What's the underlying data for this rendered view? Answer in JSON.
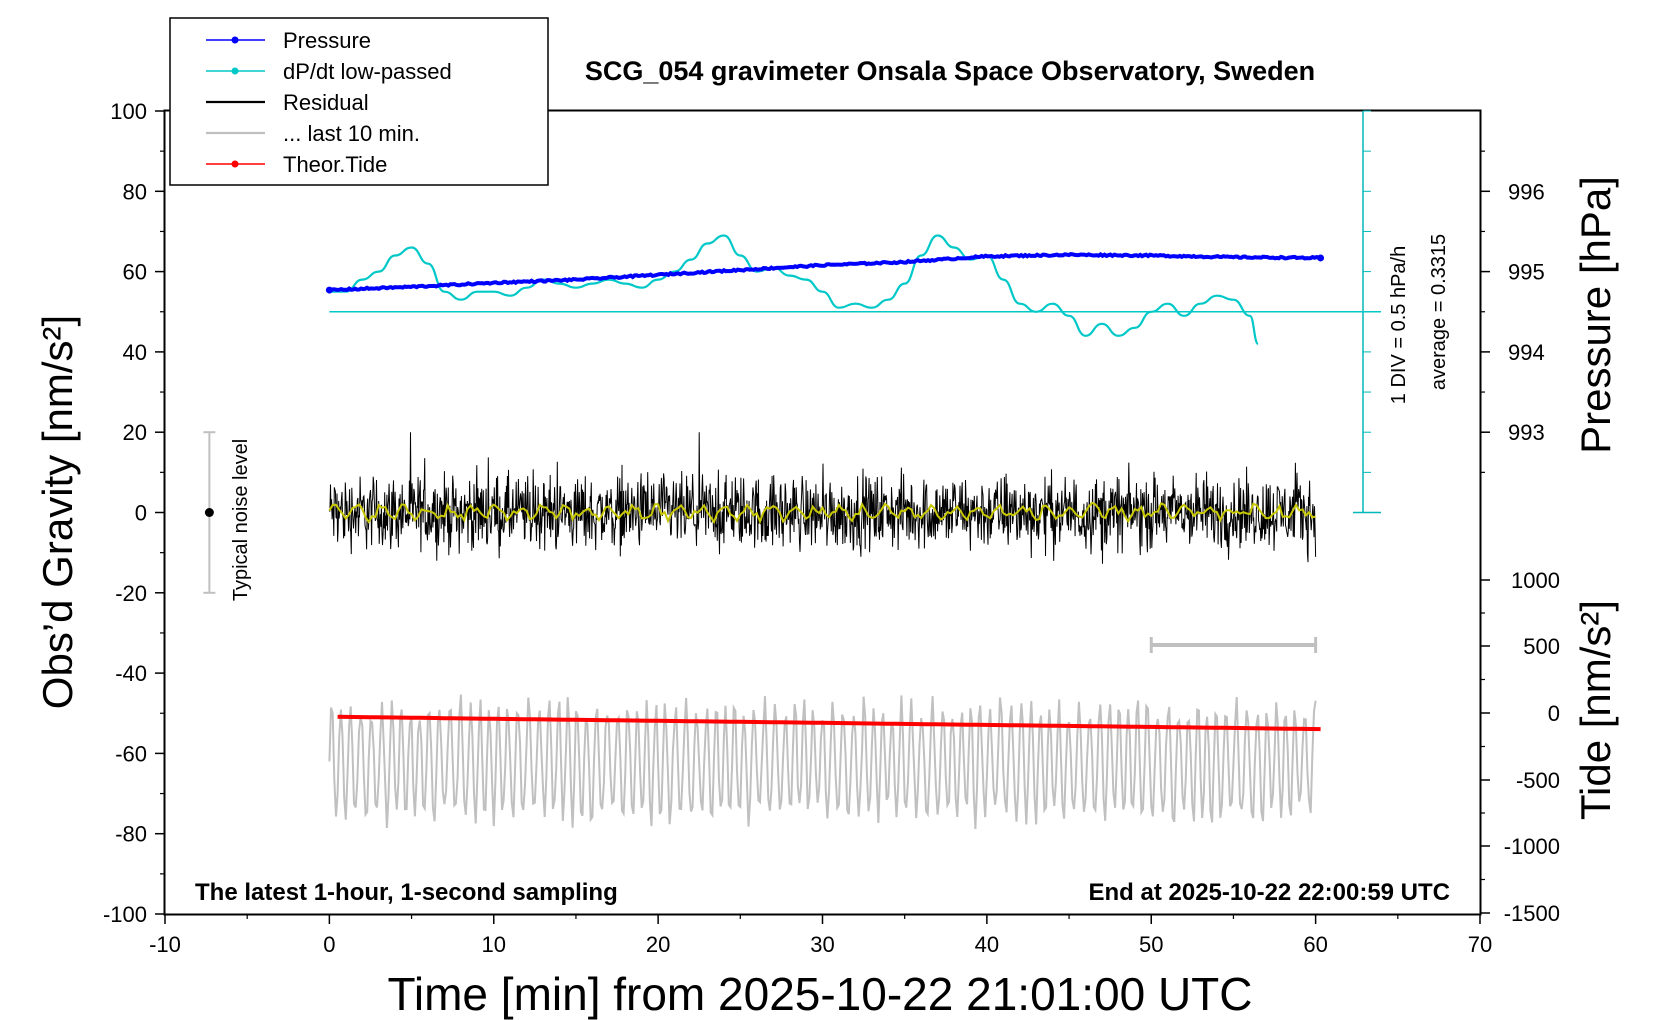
{
  "chart_data": {
    "type": "line",
    "title": "SCG_054 gravimeter Onsala Space Observatory, Sweden",
    "xlabel": "Time [min] from 2025-10-22 21:01:00 UTC",
    "ylabel_left": "Obs’d Gravity [nm/s²]",
    "ylabel_right_top": "Pressure [hPa]",
    "ylabel_right_bottom": "Tide [nm/s²]",
    "xlim": [
      -10,
      70
    ],
    "ylim": [
      -100,
      100
    ],
    "pressure_ylim": [
      992,
      997
    ],
    "tide_ylim": [
      -1500,
      1000
    ],
    "x_ticks": [
      "-10",
      "0",
      "10",
      "20",
      "30",
      "40",
      "50",
      "60",
      "70"
    ],
    "y_ticks": [
      "100",
      "80",
      "60",
      "40",
      "20",
      "0",
      "-20",
      "-40",
      "-60",
      "-80",
      "-100"
    ],
    "pressure_ticks": [
      "996",
      "995",
      "994",
      "993"
    ],
    "tide_ticks": [
      "1000",
      "500",
      "0",
      "-500",
      "-1000",
      "-1500"
    ],
    "legend": {
      "placement": "top-left",
      "entries": [
        {
          "label": "Pressure",
          "color": "#0000ff",
          "marker": true
        },
        {
          "label": "dP/dt low-passed",
          "color": "#00c8c8",
          "marker": true
        },
        {
          "label": "Residual",
          "color": "#000000",
          "marker": false
        },
        {
          "label": "... last 10 min.",
          "color": "#c0c0c0",
          "marker": false
        },
        {
          "label": "Theor.Tide",
          "color": "#ff0000",
          "marker": true
        }
      ]
    },
    "annotations": {
      "noise_label": "Typical noise level",
      "noise_range": [
        -20,
        20
      ],
      "dpdt_div": "1 DIV = 0.5 hPa/h",
      "dpdt_avg": "average = 0.3315",
      "bottom_left": "The latest 1-hour, 1-second sampling",
      "bottom_right": "End at 2025-10-22 22:00:59 UTC",
      "last10_range": [
        50,
        60
      ]
    },
    "series": [
      {
        "name": "Pressure",
        "color": "#0000ff",
        "units": "hPa",
        "x": [
          0,
          5,
          10,
          15,
          20,
          25,
          30,
          35,
          40,
          45,
          50,
          55,
          60.3
        ],
        "y": [
          994.77,
          994.81,
          994.86,
          994.9,
          994.96,
          995.02,
          995.08,
          995.12,
          995.19,
          995.21,
          995.2,
          995.18,
          995.17
        ]
      },
      {
        "name": "dP/dt low-passed",
        "color": "#00c8c8",
        "units": "nm/s² plot scale",
        "x": [
          0,
          1,
          2,
          3,
          4,
          5,
          6,
          7,
          8,
          9,
          10,
          11,
          12,
          13,
          14,
          15,
          16,
          17,
          18,
          19,
          20,
          21,
          22,
          23,
          24,
          25,
          26,
          27,
          28,
          29,
          30,
          31,
          32,
          33,
          34,
          35,
          36,
          37,
          38,
          39,
          40,
          41,
          42,
          43,
          44,
          45,
          46,
          47,
          48,
          49,
          50,
          51,
          52,
          53,
          54,
          55,
          56,
          56.5
        ],
        "y": [
          55,
          55,
          58,
          60,
          64,
          66,
          62,
          55,
          53,
          55,
          55,
          54,
          56,
          58,
          57,
          56,
          57,
          58,
          57,
          56,
          58,
          60,
          63,
          67,
          69,
          64,
          60,
          61,
          59,
          58,
          55,
          51,
          52,
          51,
          53,
          57,
          64,
          69,
          66,
          63,
          64,
          58,
          52,
          50,
          52,
          49,
          44,
          47,
          44,
          46,
          50,
          52,
          49,
          52,
          54,
          53,
          49,
          42
        ]
      },
      {
        "name": "Residual",
        "color": "#000000",
        "units": "nm/s²",
        "x_range": [
          0,
          60
        ],
        "y_range": [
          -20,
          20
        ]
      },
      {
        "name": "Theor.Tide",
        "color": "#ff0000",
        "units": "nm/s²",
        "x": [
          0.5,
          60.3
        ],
        "y": [
          -50,
          -210
        ]
      }
    ]
  }
}
